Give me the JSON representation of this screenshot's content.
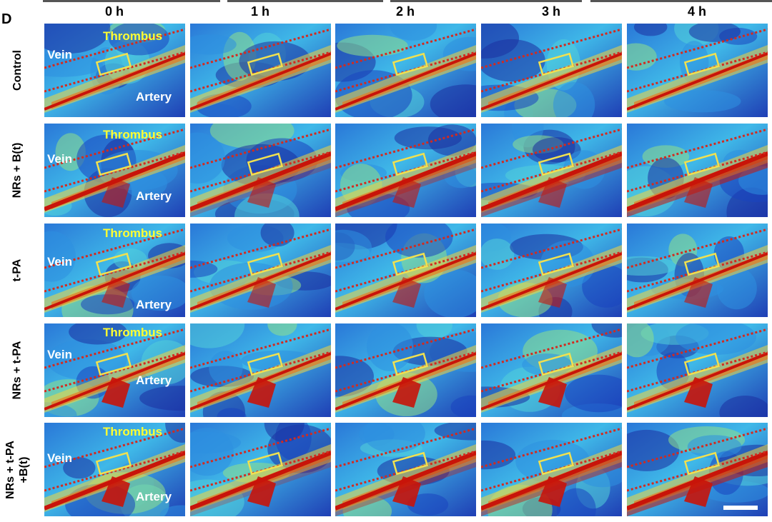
{
  "panel_letter": "D",
  "columns": [
    "0 h",
    "1 h",
    "2 h",
    "3 h",
    "4 h"
  ],
  "rows": [
    {
      "label_lines": [
        "Control"
      ]
    },
    {
      "label_lines": [
        "NRs + B(t)"
      ]
    },
    {
      "label_lines": [
        "t-PA"
      ]
    },
    {
      "label_lines": [
        "NRs + t-PA"
      ]
    },
    {
      "label_lines": [
        "NRs + t-PA",
        "+B(t)"
      ]
    }
  ],
  "annotations": {
    "thrombus": "Thrombus",
    "vein": "Vein",
    "artery": "Artery"
  },
  "colors": {
    "thermal_low": "#1f3fb5",
    "thermal_mid": "#3fb8e8",
    "thermal_high": "#c8140a",
    "vessel_outline": "#d42a1e",
    "thrombus_box": "#f0e050",
    "thrombus_label": "#ffff33",
    "label_white": "#ffffff"
  }
}
